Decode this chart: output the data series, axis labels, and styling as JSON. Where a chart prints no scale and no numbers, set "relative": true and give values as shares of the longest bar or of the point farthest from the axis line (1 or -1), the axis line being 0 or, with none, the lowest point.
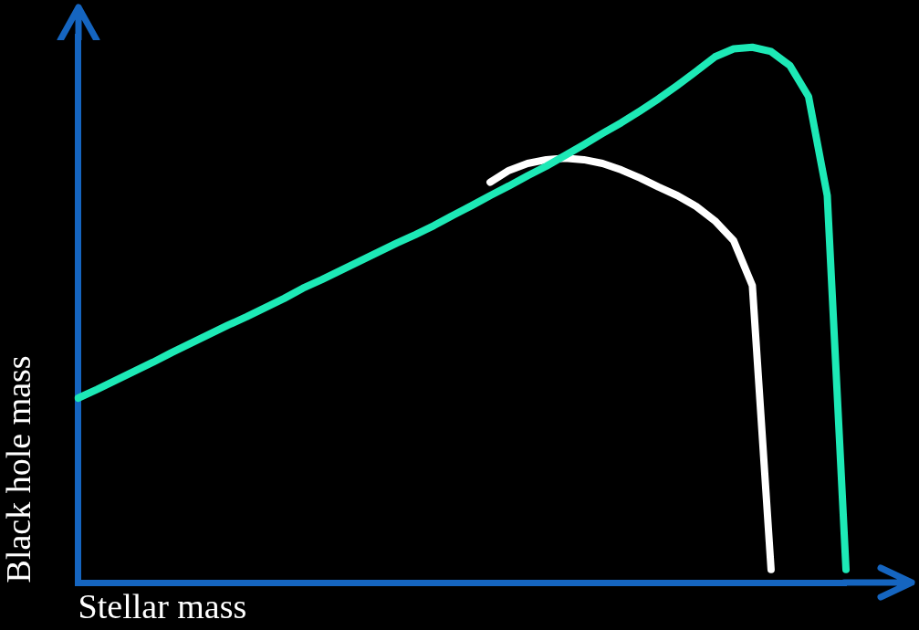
{
  "chart_data": {
    "type": "line",
    "xlabel": "Stellar mass",
    "ylabel": "Black hole mass",
    "relative": true,
    "marker": "none",
    "categories": [
      null,
      null,
      null,
      null,
      null,
      null,
      null,
      null,
      null,
      null,
      null,
      null,
      null,
      null,
      null,
      null,
      null,
      null,
      null,
      null,
      null,
      null,
      null,
      null,
      null,
      null,
      null,
      null,
      null,
      null,
      null,
      null,
      null,
      null,
      null,
      null,
      null,
      null,
      null,
      null,
      null,
      null
    ],
    "series": [
      {
        "color": "#1de9b6",
        "values": [
          0.345,
          0.361,
          0.378,
          0.395,
          0.412,
          0.43,
          0.447,
          0.464,
          0.481,
          0.497,
          0.514,
          0.531,
          0.55,
          0.566,
          0.583,
          0.6,
          0.617,
          0.634,
          0.65,
          0.667,
          0.686,
          0.704,
          0.723,
          0.741,
          0.76,
          0.778,
          0.798,
          0.818,
          0.839,
          0.859,
          0.881,
          0.904,
          0.929,
          0.955,
          0.982,
          0.997,
          1.0,
          0.992,
          0.966,
          0.908,
          0.723,
          0.025
        ]
      },
      {
        "color": "#ffffff",
        "values": [
          null,
          null,
          null,
          null,
          null,
          null,
          null,
          null,
          null,
          null,
          null,
          null,
          null,
          null,
          null,
          null,
          null,
          null,
          null,
          null,
          null,
          null,
          0.748,
          0.77,
          0.783,
          0.79,
          0.793,
          0.79,
          0.783,
          0.771,
          0.756,
          0.739,
          0.723,
          0.703,
          0.676,
          0.639,
          0.555,
          0.025,
          null,
          null,
          null,
          null
        ]
      }
    ]
  }
}
